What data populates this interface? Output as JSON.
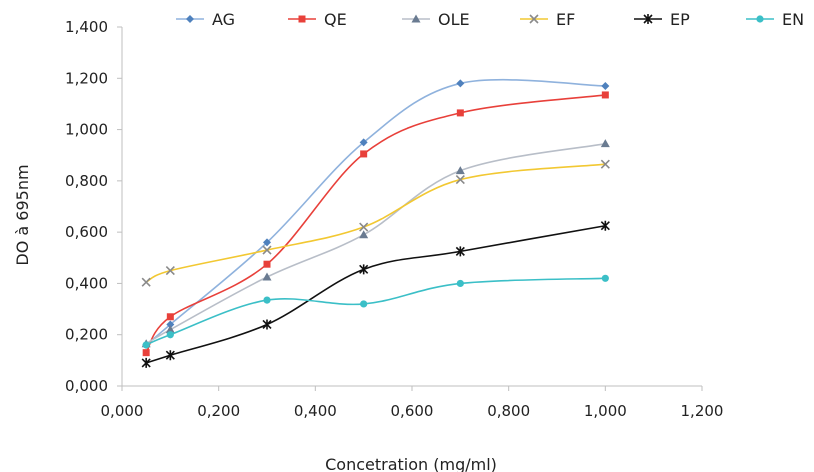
{
  "chart_data": {
    "type": "scatter",
    "title": "",
    "xlabel": "Concetration (mg/ml)",
    "ylabel": "DO à 695nm",
    "xlim": [
      0,
      1.2
    ],
    "ylim": [
      0,
      1.4
    ],
    "xticks": [
      "0,000",
      "0,200",
      "0,400",
      "0,600",
      "0,800",
      "1,000",
      "1,200"
    ],
    "yticks": [
      "0,000",
      "0,200",
      "0,400",
      "0,600",
      "0,800",
      "1,000",
      "1,200",
      "1,400"
    ],
    "grid": false,
    "legend_position": "top",
    "smooth_lines": true,
    "series": [
      {
        "name": "AG",
        "color": "#8fb2dd",
        "marker_color": "#4f81bd",
        "marker": "diamond",
        "x": [
          0.05,
          0.1,
          0.3,
          0.5,
          0.7,
          1.0
        ],
        "y": [
          0.16,
          0.24,
          0.56,
          0.95,
          1.18,
          1.17
        ]
      },
      {
        "name": "QE",
        "color": "#e8403a",
        "marker_color": "#e8403a",
        "marker": "square",
        "x": [
          0.05,
          0.1,
          0.3,
          0.5,
          0.7,
          1.0
        ],
        "y": [
          0.13,
          0.27,
          0.475,
          0.905,
          1.065,
          1.135
        ]
      },
      {
        "name": "OLE",
        "color": "#b8bec8",
        "marker_color": "#6a7b91",
        "marker": "triangle",
        "x": [
          0.05,
          0.1,
          0.3,
          0.5,
          0.7,
          1.0
        ],
        "y": [
          0.165,
          0.22,
          0.425,
          0.59,
          0.84,
          0.945
        ]
      },
      {
        "name": "EF",
        "color": "#f2c832",
        "marker_color": "#8a8a8a",
        "marker": "x",
        "x": [
          0.05,
          0.1,
          0.3,
          0.5,
          0.7,
          1.0
        ],
        "y": [
          0.405,
          0.45,
          0.53,
          0.62,
          0.805,
          0.865
        ]
      },
      {
        "name": "EP",
        "color": "#111111",
        "marker_color": "#111111",
        "marker": "star",
        "x": [
          0.05,
          0.1,
          0.3,
          0.5,
          0.7,
          1.0
        ],
        "y": [
          0.09,
          0.12,
          0.24,
          0.455,
          0.525,
          0.625
        ]
      },
      {
        "name": "EN",
        "color": "#3bbfc7",
        "marker_color": "#3bbfc7",
        "marker": "circle",
        "x": [
          0.05,
          0.1,
          0.3,
          0.5,
          0.7,
          1.0
        ],
        "y": [
          0.16,
          0.2,
          0.335,
          0.32,
          0.4,
          0.42
        ]
      }
    ]
  }
}
